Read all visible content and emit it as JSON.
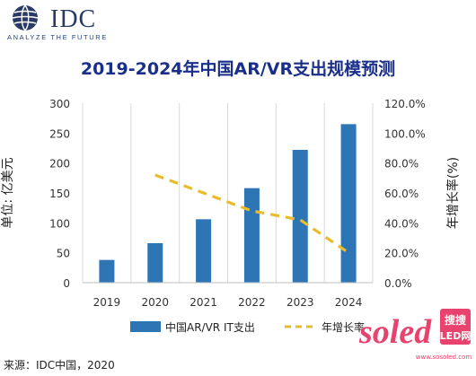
{
  "header": {
    "logo_name": "IDC",
    "logo_tagline": "ANALYZE THE FUTURE"
  },
  "chart_data": {
    "type": "bar",
    "title": "2019-2024年中国AR/VR支出规模预测",
    "categories": [
      "2019",
      "2020",
      "2021",
      "2022",
      "2023",
      "2024"
    ],
    "series": [
      {
        "name": "中国AR/VR IT支出",
        "type": "bar",
        "axis": "left",
        "color": "#2e75b6",
        "values": [
          38,
          66,
          106,
          158,
          222,
          265
        ]
      },
      {
        "name": "年增长率",
        "type": "line",
        "style": "dashed",
        "axis": "right",
        "color": "#e8bc2a",
        "x": [
          "2020",
          "2021",
          "2022",
          "2023",
          "2024"
        ],
        "values": [
          72.0,
          60.0,
          48.0,
          42.0,
          20.0
        ]
      }
    ],
    "y_left": {
      "label": "单位: 亿美元",
      "min": 0,
      "max": 300,
      "ticks": [
        "0",
        "50",
        "100",
        "150",
        "200",
        "250",
        "300"
      ]
    },
    "y_right": {
      "label": "年增长率(%)",
      "min": 0,
      "max": 120,
      "ticks": [
        "0.0%",
        "20.0%",
        "40.0%",
        "60.0%",
        "80.0%",
        "100.0%",
        "120.0%"
      ]
    },
    "grid": "vertical",
    "legend_position": "bottom"
  },
  "footer": {
    "source": "来源：IDC中国，2020"
  },
  "watermark": {
    "brand": "soled",
    "sub_top": "搜搜",
    "sub_bottom": "LED网",
    "url": "www.sosoled.com"
  },
  "colors": {
    "title": "#1a2f8a",
    "bar": "#2e75b6",
    "line": "#e8bc2a",
    "watermark": "#e8436e"
  }
}
